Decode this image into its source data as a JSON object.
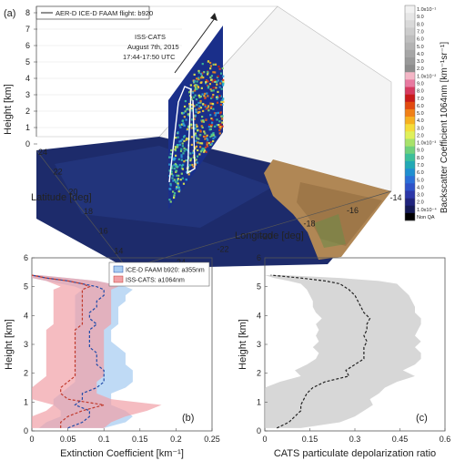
{
  "figure_label": "(a)",
  "legend": {
    "flight": "AER-D ICE-D FAAM flight: b920"
  },
  "annotation": {
    "instrument": "ISS-CATS",
    "date": "August 7th, 2015",
    "time": "17:44-17:50 UTC"
  },
  "map3d": {
    "zlabel": "Height [km]",
    "zticks": [
      "0",
      "1",
      "2",
      "3",
      "4",
      "5",
      "6",
      "7",
      "8"
    ],
    "lat_label": "Latitude [deg]",
    "lat_ticks": [
      "24",
      "22",
      "20",
      "18",
      "16",
      "14",
      "12"
    ],
    "lon_label": "Longitude [deg]",
    "lon_ticks": [
      "-26",
      "-24",
      "-22",
      "-20",
      "-18",
      "-16",
      "-14"
    ],
    "colorbar": {
      "label": "Backscatter Coefficient 1064nm [km⁻¹sr⁻¹]",
      "ticks": [
        "1.0x10⁻¹",
        "9.0",
        "8.0",
        "7.0",
        "6.0",
        "5.0",
        "4.0",
        "3.0",
        "2.0",
        "1.0x10⁻²",
        "9.0",
        "8.0",
        "7.0",
        "6.0",
        "5.0",
        "4.0",
        "3.0",
        "2.0",
        "1.0x10⁻³",
        "9.0",
        "8.0",
        "7.0",
        "6.0",
        "5.0",
        "4.0",
        "3.0",
        "2.0",
        "1.0x10⁻⁴",
        "Non QA"
      ],
      "colors": [
        "#f2f2f2",
        "#e6e6e6",
        "#d9d9d9",
        "#cccccc",
        "#bfbfbf",
        "#b3b3b3",
        "#a6a6a6",
        "#999999",
        "#8c8c8c",
        "#f4b6c6",
        "#e879a0",
        "#d63a5f",
        "#c81a1a",
        "#e24a10",
        "#f08018",
        "#f6b020",
        "#f5dc3a",
        "#dff05a",
        "#a8e26a",
        "#6fd07c",
        "#3cbf9a",
        "#22a9b5",
        "#1f8fd0",
        "#2a6fd8",
        "#2e52c8",
        "#2c37a8",
        "#20247d",
        "#151a55",
        "#000000"
      ]
    }
  },
  "chart_data": [
    {
      "type": "line",
      "panel_label": "(b)",
      "xlabel": "Extinction Coefficient [km⁻¹]",
      "ylabel": "Height [km]",
      "xlim": [
        0,
        0.25
      ],
      "ylim": [
        0,
        6
      ],
      "xticks": [
        "0",
        "0.05",
        "0.1",
        "0.15",
        "0.2",
        "0.25"
      ],
      "yticks": [
        "0",
        "1",
        "2",
        "3",
        "4",
        "5",
        "6"
      ],
      "legend_position": "top-right",
      "heights": [
        0.1,
        0.3,
        0.5,
        0.7,
        0.9,
        1.1,
        1.3,
        1.5,
        1.7,
        1.9,
        2.1,
        2.3,
        2.5,
        2.7,
        2.9,
        3.1,
        3.3,
        3.5,
        3.7,
        3.9,
        4.1,
        4.3,
        4.5,
        4.7,
        4.9,
        5.0,
        5.1,
        5.2,
        5.3,
        5.4
      ],
      "series": [
        {
          "name": "ICE-D FAAM b920: a355nm",
          "color": "#1f4aa8",
          "fill": "#a9cdf2",
          "values": [
            0.05,
            0.07,
            0.08,
            0.08,
            0.06,
            0.07,
            0.07,
            0.09,
            0.1,
            0.1,
            0.1,
            0.09,
            0.09,
            0.09,
            0.08,
            0.08,
            0.08,
            0.08,
            0.09,
            0.08,
            0.08,
            0.09,
            0.09,
            0.1,
            0.1,
            0.09,
            0.07,
            0.05,
            0.02,
            0.0
          ],
          "lower": [
            0.01,
            0.02,
            0.04,
            0.04,
            0.03,
            0.03,
            0.04,
            0.05,
            0.06,
            0.06,
            0.06,
            0.06,
            0.06,
            0.06,
            0.06,
            0.06,
            0.06,
            0.06,
            0.06,
            0.06,
            0.06,
            0.06,
            0.06,
            0.06,
            0.07,
            0.06,
            0.04,
            0.02,
            0.0,
            0.0
          ],
          "upper": [
            0.1,
            0.13,
            0.14,
            0.13,
            0.11,
            0.11,
            0.11,
            0.13,
            0.14,
            0.14,
            0.14,
            0.13,
            0.13,
            0.13,
            0.12,
            0.11,
            0.11,
            0.11,
            0.12,
            0.12,
            0.12,
            0.12,
            0.13,
            0.13,
            0.14,
            0.13,
            0.11,
            0.09,
            0.05,
            0.01
          ]
        },
        {
          "name": "ISS-CATS: a1064nm",
          "color": "#c0392b",
          "fill": "#f1a0a6",
          "values": [
            0.04,
            0.04,
            0.05,
            0.07,
            0.1,
            0.05,
            0.04,
            0.04,
            0.05,
            0.06,
            0.06,
            0.06,
            0.06,
            0.06,
            0.06,
            0.06,
            0.06,
            0.06,
            0.07,
            0.07,
            0.07,
            0.07,
            0.07,
            0.07,
            0.07,
            0.08,
            0.07,
            0.05,
            0.02,
            0.0
          ],
          "lower": [
            0.0,
            0.0,
            0.0,
            0.02,
            0.03,
            0.0,
            0.0,
            0.0,
            0.01,
            0.02,
            0.02,
            0.02,
            0.02,
            0.02,
            0.02,
            0.02,
            0.02,
            0.02,
            0.03,
            0.03,
            0.03,
            0.03,
            0.03,
            0.03,
            0.03,
            0.04,
            0.03,
            0.02,
            0.0,
            0.0
          ],
          "upper": [
            0.1,
            0.11,
            0.13,
            0.16,
            0.18,
            0.11,
            0.09,
            0.09,
            0.09,
            0.1,
            0.1,
            0.1,
            0.1,
            0.1,
            0.1,
            0.1,
            0.1,
            0.1,
            0.11,
            0.11,
            0.11,
            0.11,
            0.11,
            0.11,
            0.11,
            0.12,
            0.11,
            0.09,
            0.05,
            0.01
          ]
        }
      ]
    },
    {
      "type": "line",
      "panel_label": "(c)",
      "xlabel": "CATS particulate depolarization ratio",
      "ylabel": "Height [km]",
      "xlim": [
        0,
        0.6
      ],
      "ylim": [
        0,
        6
      ],
      "xticks": [
        "0",
        "0.15",
        "0.3",
        "0.45",
        "0.6"
      ],
      "yticks": [
        "0",
        "1",
        "2",
        "3",
        "4",
        "5",
        "6"
      ],
      "heights": [
        0.1,
        0.3,
        0.5,
        0.7,
        0.9,
        1.1,
        1.3,
        1.5,
        1.7,
        1.9,
        2.1,
        2.3,
        2.5,
        2.7,
        2.9,
        3.1,
        3.3,
        3.5,
        3.7,
        3.9,
        4.1,
        4.3,
        4.5,
        4.7,
        4.9,
        5.1,
        5.2,
        5.3,
        5.4
      ],
      "series": [
        {
          "color": "#222222",
          "fill": "#c9c9c9",
          "values": [
            0.04,
            0.08,
            0.1,
            0.12,
            0.12,
            0.13,
            0.14,
            0.16,
            0.2,
            0.28,
            0.27,
            0.3,
            0.33,
            0.33,
            0.33,
            0.34,
            0.33,
            0.34,
            0.34,
            0.35,
            0.33,
            0.32,
            0.31,
            0.3,
            0.28,
            0.25,
            0.2,
            0.12,
            0.02
          ],
          "lower": [
            0.0,
            0.0,
            0.0,
            0.0,
            0.0,
            0.0,
            0.0,
            0.0,
            0.05,
            0.12,
            0.1,
            0.14,
            0.17,
            0.18,
            0.16,
            0.18,
            0.17,
            0.18,
            0.17,
            0.19,
            0.17,
            0.16,
            0.16,
            0.15,
            0.14,
            0.12,
            0.08,
            0.03,
            0.0
          ],
          "upper": [
            0.12,
            0.25,
            0.3,
            0.33,
            0.36,
            0.35,
            0.38,
            0.4,
            0.44,
            0.5,
            0.46,
            0.5,
            0.52,
            0.52,
            0.5,
            0.52,
            0.5,
            0.51,
            0.52,
            0.52,
            0.5,
            0.5,
            0.49,
            0.48,
            0.46,
            0.44,
            0.38,
            0.25,
            0.06
          ]
        }
      ]
    }
  ]
}
